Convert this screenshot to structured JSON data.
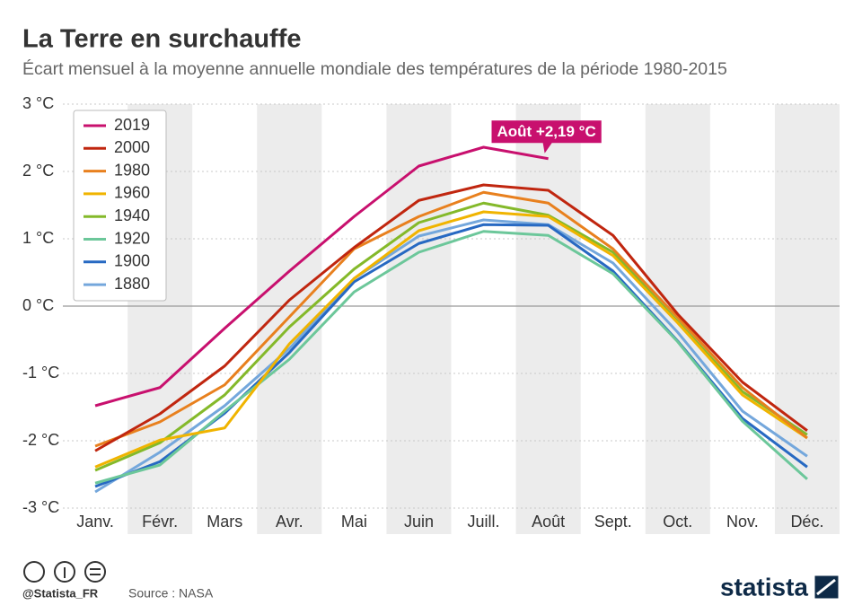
{
  "chart_data": {
    "type": "line",
    "title": "La Terre en surchauffe",
    "subtitle": "Écart mensuel à la moyenne annuelle mondiale des températures de la période 1980-2015",
    "annotation": "Août +2,19 °C",
    "categories": [
      "Janv.",
      "Févr.",
      "Mars",
      "Avr.",
      "Mai",
      "Juin",
      "Juill.",
      "Août",
      "Sept.",
      "Oct.",
      "Nov.",
      "Déc."
    ],
    "series": [
      {
        "name": "2019",
        "color": "#c8106e",
        "values": [
          -1.48,
          -1.21,
          -0.33,
          0.52,
          1.33,
          2.08,
          2.36,
          2.19,
          null,
          null,
          null,
          null
        ]
      },
      {
        "name": "2000",
        "color": "#c0260f",
        "values": [
          -2.15,
          -1.6,
          -0.89,
          0.09,
          0.87,
          1.57,
          1.8,
          1.72,
          1.05,
          -0.12,
          -1.13,
          -1.85
        ]
      },
      {
        "name": "1980",
        "color": "#e8801e",
        "values": [
          -2.08,
          -1.72,
          -1.17,
          -0.16,
          0.85,
          1.33,
          1.69,
          1.53,
          0.85,
          -0.17,
          -1.21,
          -1.96
        ]
      },
      {
        "name": "1960",
        "color": "#f0b400",
        "values": [
          -2.39,
          -1.99,
          -1.81,
          -0.56,
          0.41,
          1.12,
          1.4,
          1.33,
          0.75,
          -0.25,
          -1.32,
          -1.96
        ]
      },
      {
        "name": "1940",
        "color": "#84b92a",
        "values": [
          -2.44,
          -2.03,
          -1.32,
          -0.31,
          0.55,
          1.24,
          1.53,
          1.35,
          0.8,
          -0.23,
          -1.27,
          -1.91
        ]
      },
      {
        "name": "1920",
        "color": "#6cc79a",
        "values": [
          -2.63,
          -2.36,
          -1.56,
          -0.79,
          0.21,
          0.8,
          1.11,
          1.05,
          0.48,
          -0.53,
          -1.71,
          -2.57
        ]
      },
      {
        "name": "1900",
        "color": "#2769c2",
        "values": [
          -2.68,
          -2.31,
          -1.59,
          -0.69,
          0.36,
          0.93,
          1.21,
          1.2,
          0.52,
          -0.52,
          -1.67,
          -2.39
        ]
      },
      {
        "name": "1880",
        "color": "#74a7dc",
        "values": [
          -2.76,
          -2.17,
          -1.48,
          -0.63,
          0.41,
          1.04,
          1.28,
          1.21,
          0.64,
          -0.39,
          -1.56,
          -2.23
        ]
      }
    ],
    "ylim": [
      -3,
      3
    ],
    "yticks": [
      {
        "value": 3,
        "label": "3 °C"
      },
      {
        "value": 2,
        "label": "2 °C"
      },
      {
        "value": 1,
        "label": "1 °C"
      },
      {
        "value": 0,
        "label": "0 °C"
      },
      {
        "value": -1,
        "label": "-1 °C"
      },
      {
        "value": -2,
        "label": "-2 °C"
      },
      {
        "value": -3,
        "label": "-3 °C"
      }
    ],
    "grid": true,
    "legend": "upper left"
  },
  "footer": {
    "handle": "@Statista_FR",
    "source": "Source : NASA",
    "brand": "statista"
  }
}
